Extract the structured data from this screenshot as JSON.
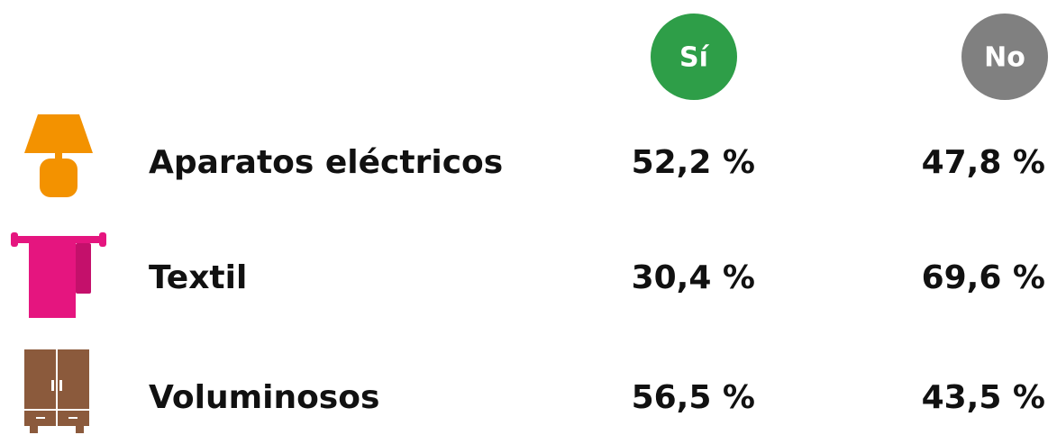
{
  "table": {
    "columns": [
      "Sí",
      "No"
    ],
    "rows": [
      [
        "Aparatos eléctricos",
        "52,2 %",
        "47,8 %"
      ],
      [
        "Textil",
        "30,4 %",
        "69,6 %"
      ],
      [
        "Voluminosos",
        "56,5 %",
        "43,5 %"
      ]
    ]
  }
}
